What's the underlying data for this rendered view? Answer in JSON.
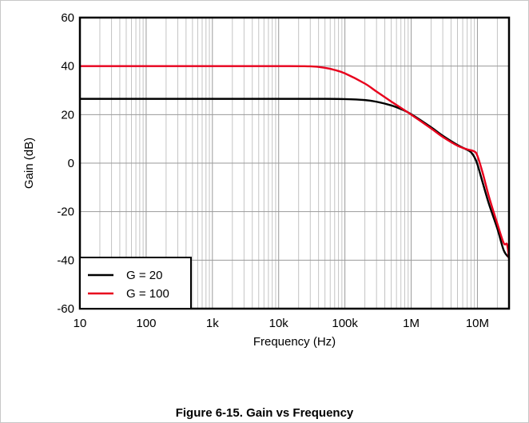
{
  "caption": "Figure 6-15. Gain vs Frequency",
  "chart_data": {
    "type": "line",
    "title": "",
    "xlabel": "Frequency (Hz)",
    "ylabel": "Gain (dB)",
    "xscale": "log",
    "xlim": [
      10,
      30000000
    ],
    "ylim": [
      -60,
      60
    ],
    "xticks": [
      10,
      100,
      1000,
      10000,
      100000,
      1000000,
      10000000
    ],
    "xtick_labels": [
      "10",
      "100",
      "1k",
      "10k",
      "100k",
      "1M",
      "10M"
    ],
    "yticks": [
      -60,
      -40,
      -20,
      0,
      20,
      40,
      60
    ],
    "ytick_labels": [
      "-60",
      "-40",
      "-20",
      "0",
      "20",
      "40",
      "60"
    ],
    "grid": true,
    "legend_position": "bottom-left",
    "series": [
      {
        "name": "G = 20",
        "color": "#000000",
        "x": [
          10,
          100,
          1000,
          10000,
          50000,
          100000,
          200000,
          300000,
          500000,
          700000,
          1000000,
          2000000,
          3000000,
          5000000,
          7000000,
          8000000,
          9000000,
          10000000,
          12000000,
          15000000,
          20000000,
          25000000,
          30000000
        ],
        "y": [
          26.5,
          26.5,
          26.5,
          26.5,
          26.5,
          26.4,
          26,
          25.3,
          23.8,
          22.3,
          20.2,
          14.8,
          11.3,
          7.5,
          5.5,
          4.5,
          2.5,
          -0.5,
          -8,
          -17,
          -27,
          -36,
          -39
        ]
      },
      {
        "name": "G = 100",
        "color": "#e8001c",
        "x": [
          10,
          100,
          1000,
          10000,
          30000,
          50000,
          70000,
          100000,
          200000,
          300000,
          500000,
          700000,
          1000000,
          2000000,
          3000000,
          5000000,
          7000000,
          9000000,
          10000000,
          12000000,
          15000000,
          20000000,
          25000000,
          28000000,
          30000000
        ],
        "y": [
          40,
          40,
          40,
          40,
          39.9,
          39.3,
          38.4,
          37,
          32.8,
          29.5,
          25.4,
          22.8,
          20,
          14.3,
          10.8,
          7.2,
          5.7,
          4.8,
          3,
          -4,
          -14,
          -25,
          -33,
          -33.5,
          -39.5
        ]
      }
    ]
  }
}
